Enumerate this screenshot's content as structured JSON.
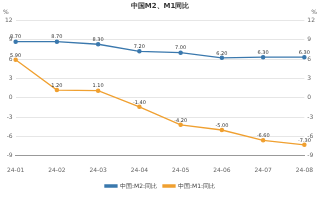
{
  "chart_data": {
    "type": "line",
    "title": "中国M2、M1同比",
    "ylabel": "%",
    "y2label": "%",
    "categories": [
      "24-01",
      "24-02",
      "24-03",
      "24-04",
      "24-05",
      "24-06",
      "24-07",
      "24-08"
    ],
    "series": [
      {
        "name": "中国:M2:同比",
        "color": "#3a78ad",
        "marker": "circle",
        "values": [
          8.7,
          8.7,
          8.3,
          7.2,
          7.0,
          6.2,
          6.3,
          6.3
        ],
        "value_labels": [
          "8.70",
          "8.70",
          "8.30",
          "7.20",
          "7.00",
          "6.20",
          "6.30",
          "6.30"
        ]
      },
      {
        "name": "中国:M1:同比",
        "color": "#f0a030",
        "marker": "circle",
        "values": [
          5.9,
          1.2,
          1.1,
          -1.4,
          -4.2,
          -5.0,
          -6.6,
          -7.3
        ],
        "value_labels": [
          "5.90",
          "1.20",
          "1.10",
          "-1.40",
          "-4.20",
          "-5.00",
          "-6.60",
          "-7.30"
        ]
      }
    ],
    "ylim": [
      -9,
      12
    ],
    "yticks": [
      -9,
      -6,
      -3,
      0,
      3,
      6,
      9,
      12
    ],
    "y2lim": [
      -9,
      12
    ],
    "y2ticks": [
      -9,
      -6,
      -3,
      0,
      3,
      6,
      9,
      12
    ],
    "grid": true,
    "legend": "bottom",
    "data_labels": true
  }
}
